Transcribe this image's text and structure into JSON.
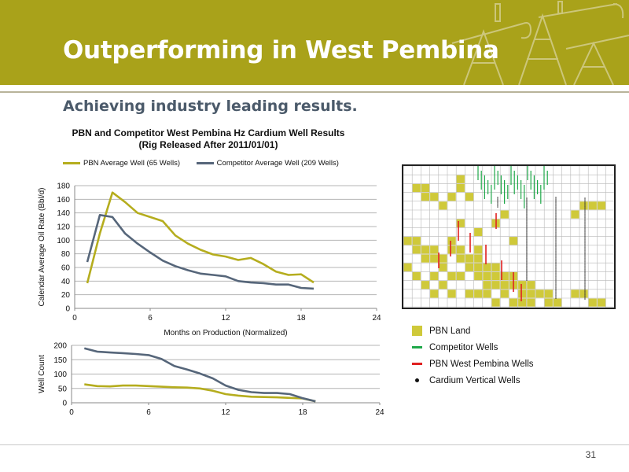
{
  "slide": {
    "title": "Outperforming in West Pembina",
    "subtitle": "Achieving industry leading results.",
    "page_number": "31"
  },
  "chart_title_line1": "PBN and Competitor West Pembina Hz Cardium Well Results",
  "chart_title_line2": "(Rig Released After 2011/01/01)",
  "colors": {
    "banner": "#a9a21a",
    "pbn": "#b5ad1e",
    "competitor": "#56667a",
    "competitor_wells": "#1fa84a",
    "pbn_wells": "#e02020",
    "vertical_wells": "#111111"
  },
  "chart_data": [
    {
      "type": "line",
      "title": "PBN and Competitor West Pembina Hz Cardium Well Results (Rig Released After 2011/01/01)",
      "xlabel": "Months on Production (Normalized)",
      "ylabel": "Calendar Average Oil Rate (Bbl/d)",
      "xlim": [
        0,
        24
      ],
      "ylim": [
        0,
        180
      ],
      "xticks": [
        "0",
        "6",
        "12",
        "18",
        "24"
      ],
      "yticks": [
        "0",
        "20",
        "40",
        "60",
        "80",
        "100",
        "120",
        "140",
        "160",
        "180"
      ],
      "x": [
        1,
        2,
        3,
        4,
        5,
        6,
        7,
        8,
        9,
        10,
        11,
        12,
        13,
        14,
        15,
        16,
        17,
        18,
        19
      ],
      "series": [
        {
          "name": "PBN Average Well (65 Wells)",
          "color": "#b5ad1e",
          "values": [
            37,
            110,
            170,
            156,
            140,
            134,
            128,
            107,
            95,
            86,
            79,
            76,
            71,
            74,
            65,
            54,
            49,
            50,
            38
          ]
        },
        {
          "name": "Competitor Average Well (209 Wells)",
          "color": "#56667a",
          "values": [
            68,
            137,
            134,
            110,
            95,
            82,
            70,
            62,
            56,
            51,
            49,
            47,
            40,
            38,
            37,
            35,
            35,
            30,
            29
          ]
        }
      ],
      "legend": "top",
      "grid": true
    },
    {
      "type": "line",
      "ylabel": "Well Count",
      "xlim": [
        0,
        24
      ],
      "ylim": [
        0,
        200
      ],
      "xticks": [
        "0",
        "6",
        "12",
        "18",
        "24"
      ],
      "yticks": [
        "0",
        "50",
        "100",
        "150",
        "200"
      ],
      "x": [
        1,
        2,
        3,
        4,
        5,
        6,
        7,
        8,
        9,
        10,
        11,
        12,
        13,
        14,
        15,
        16,
        17,
        18,
        19
      ],
      "series": [
        {
          "color": "#b5ad1e",
          "values": [
            64,
            58,
            57,
            60,
            60,
            58,
            56,
            54,
            53,
            50,
            42,
            30,
            25,
            21,
            20,
            19,
            17,
            15,
            5
          ]
        },
        {
          "color": "#56667a",
          "values": [
            190,
            178,
            175,
            173,
            170,
            166,
            153,
            128,
            116,
            102,
            85,
            60,
            45,
            37,
            34,
            34,
            30,
            16,
            5
          ]
        }
      ],
      "grid": true
    }
  ],
  "map_legend": [
    {
      "icon": "square",
      "label": "PBN Land"
    },
    {
      "icon": "green-line",
      "label": "Competitor Wells"
    },
    {
      "icon": "red-line",
      "label": "PBN West Pembina Wells"
    },
    {
      "icon": "dot",
      "label": "Cardium Vertical Wells"
    }
  ]
}
